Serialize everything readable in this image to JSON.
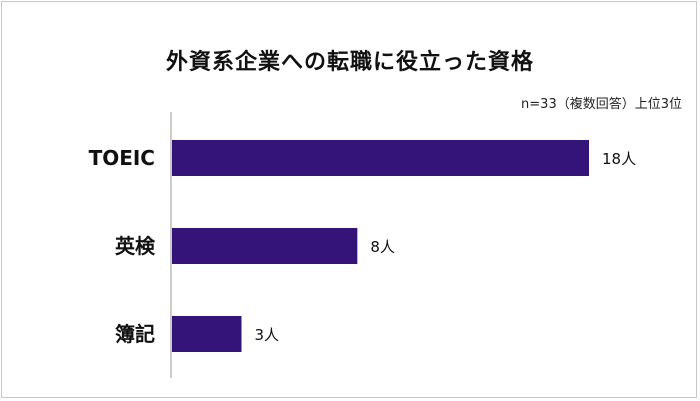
{
  "chart_data": {
    "type": "bar",
    "orientation": "horizontal",
    "title": "外資系企業への転職に役立った資格",
    "subtitle": "n=33（複数回答）上位3位",
    "categories": [
      "TOEIC",
      "英検",
      "簿記"
    ],
    "values": [
      18,
      8,
      3
    ],
    "value_labels": [
      "18人",
      "8人",
      "3人"
    ],
    "xlim": [
      0,
      18
    ],
    "grid": false,
    "bar_color": "#341479",
    "axis_color": "#bbbbbb"
  }
}
